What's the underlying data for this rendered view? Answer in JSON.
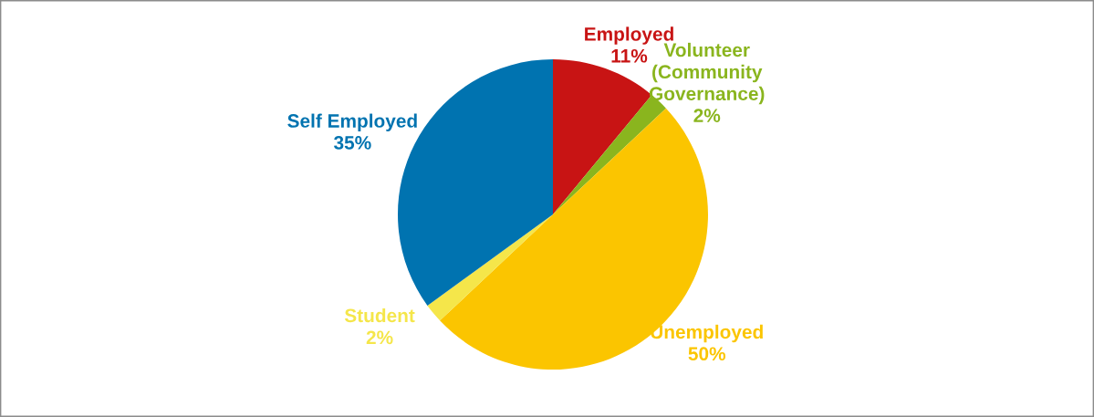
{
  "chart_data": {
    "type": "pie",
    "categories": [
      "Employed",
      "Volunteer\n(Community\nGovernance)",
      "Unemployed",
      "Student",
      "Self Employed"
    ],
    "values": [
      11,
      2,
      50,
      2,
      35
    ],
    "value_labels": [
      "11%",
      "2%",
      "50%",
      "2%",
      "35%"
    ],
    "colors": [
      "#c81414",
      "#8ab51e",
      "#fbc500",
      "#f5e64a",
      "#0073b0"
    ]
  }
}
